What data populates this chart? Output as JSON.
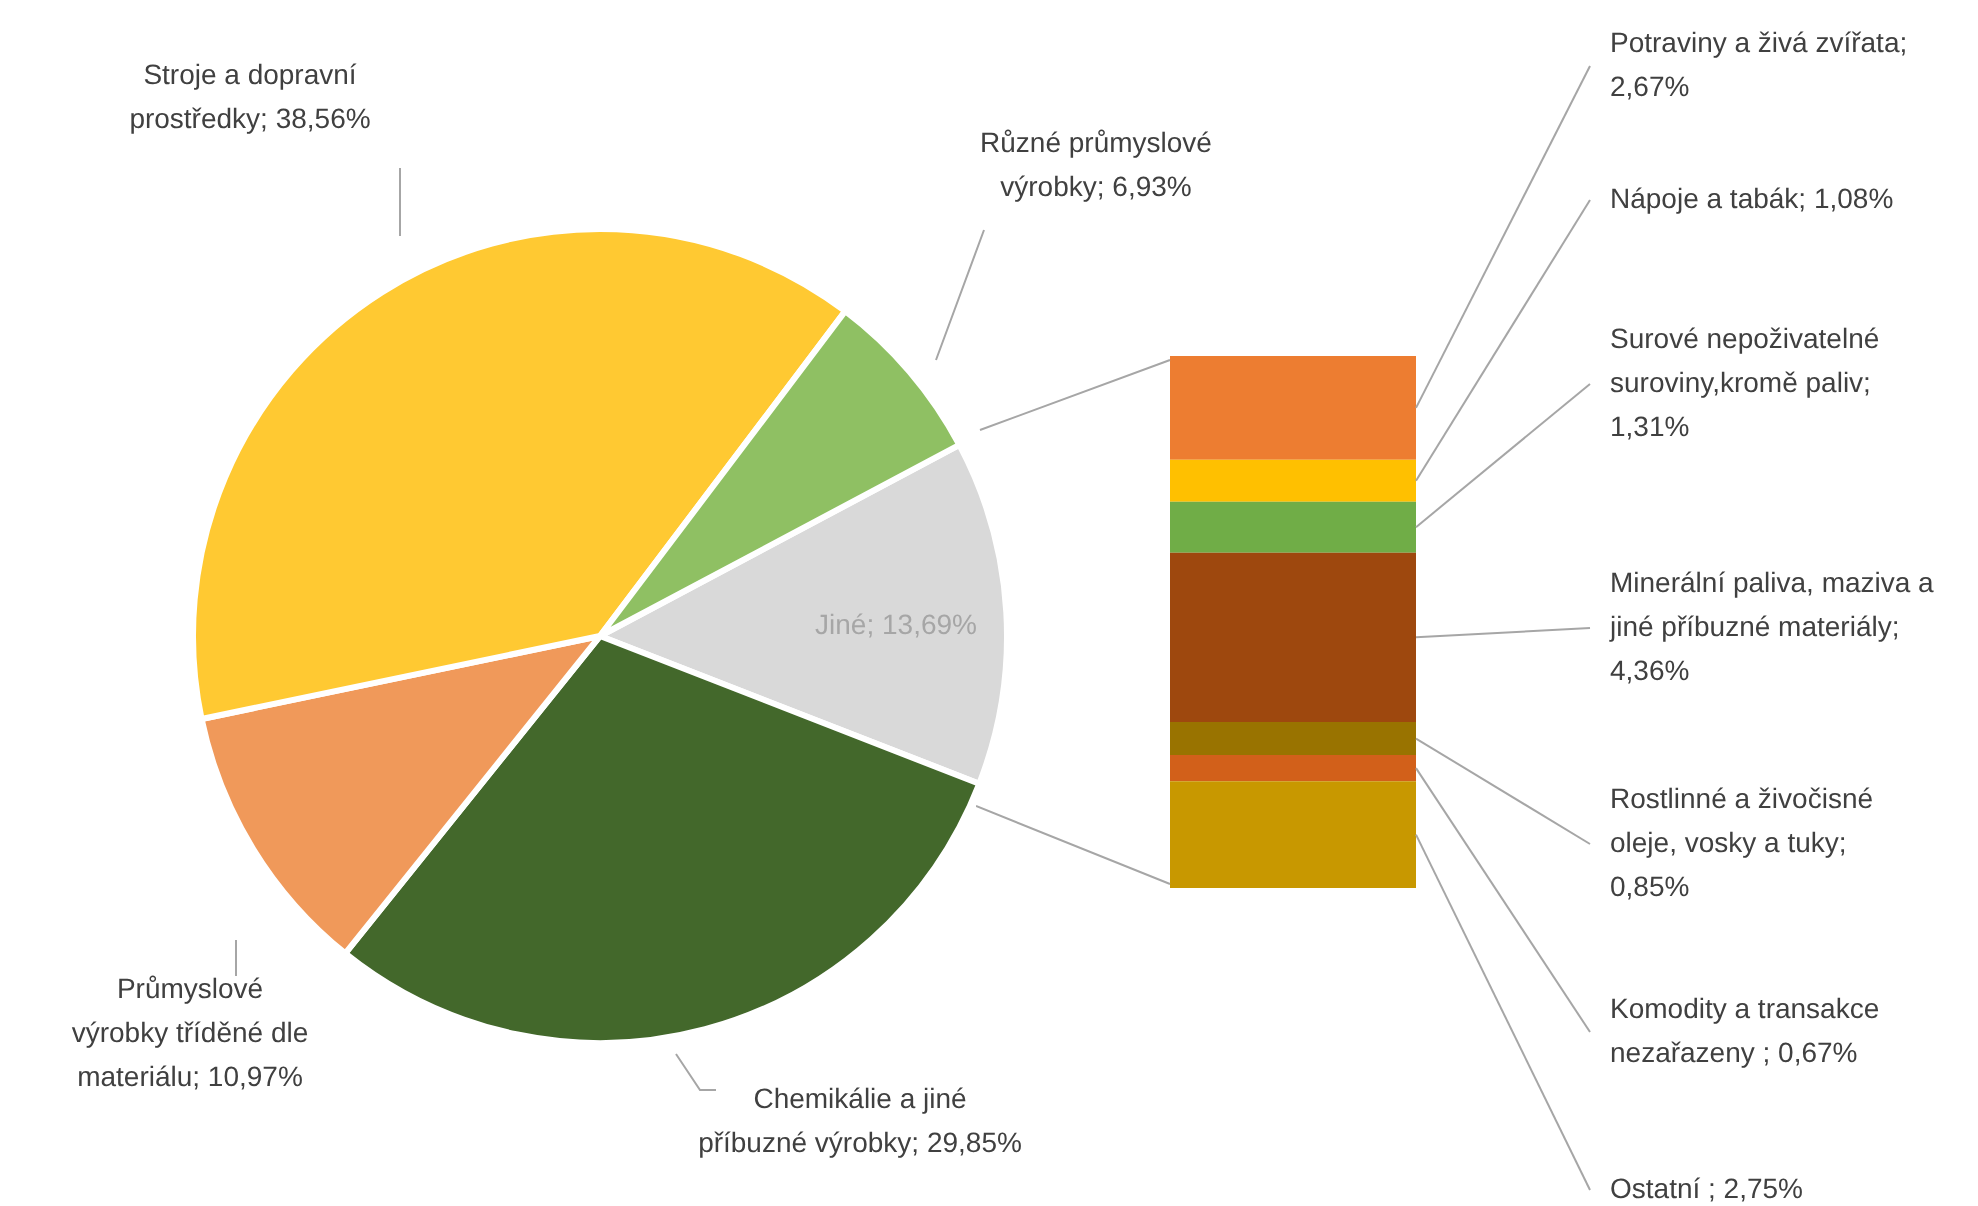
{
  "chart_data": [
    {
      "type": "pie",
      "categories": [
        "Jiné",
        "Chemikálie a jiné příbuzné výrobky",
        "Průmyslové výrobky tříděné dle materiálu",
        "Stroje a dopravní prostředky",
        "Různé průmyslové výrobky"
      ],
      "values": [
        13.69,
        29.85,
        10.97,
        38.56,
        6.93
      ],
      "colors": [
        "#d9d9d9",
        "#43682b",
        "#f0995a",
        "#ffc932",
        "#8fc063"
      ],
      "value_labels": [
        "13,69%",
        "29,85%",
        "10,97%",
        "38,56%",
        "6,93%"
      ]
    },
    {
      "type": "bar",
      "stacked": true,
      "tick_labels": false,
      "categories": [
        null
      ],
      "series": [
        {
          "name": "Ostatní ;",
          "color": "#c89800",
          "values": [
            2.75
          ],
          "value_labels": [
            "2,75%"
          ]
        },
        {
          "name": "Komodity a transakce nezařazeny ;",
          "color": "#d2601a",
          "values": [
            0.67
          ],
          "value_labels": [
            "0,67%"
          ]
        },
        {
          "name": "Rostlinné a živočisné oleje, vosky a tuky;",
          "color": "#997300",
          "values": [
            0.85
          ],
          "value_labels": [
            "0,85%"
          ]
        },
        {
          "name": "Minerální paliva, maziva a jiné příbuzné materiály;",
          "color": "#9e480e",
          "values": [
            4.36
          ],
          "value_labels": [
            "4,36%"
          ]
        },
        {
          "name": "Surové nepoživatelné suroviny,kromě paliv;",
          "color": "#70ad47",
          "values": [
            1.31
          ],
          "value_labels": [
            "1,31%"
          ]
        },
        {
          "name": "Nápoje a tabák;",
          "color": "#ffc000",
          "values": [
            1.08
          ],
          "value_labels": [
            "1,08%"
          ]
        },
        {
          "name": "Potraviny a živá zvířata;",
          "color": "#ed7d31",
          "values": [
            2.67
          ],
          "value_labels": [
            "2,67%"
          ]
        }
      ]
    }
  ]
}
